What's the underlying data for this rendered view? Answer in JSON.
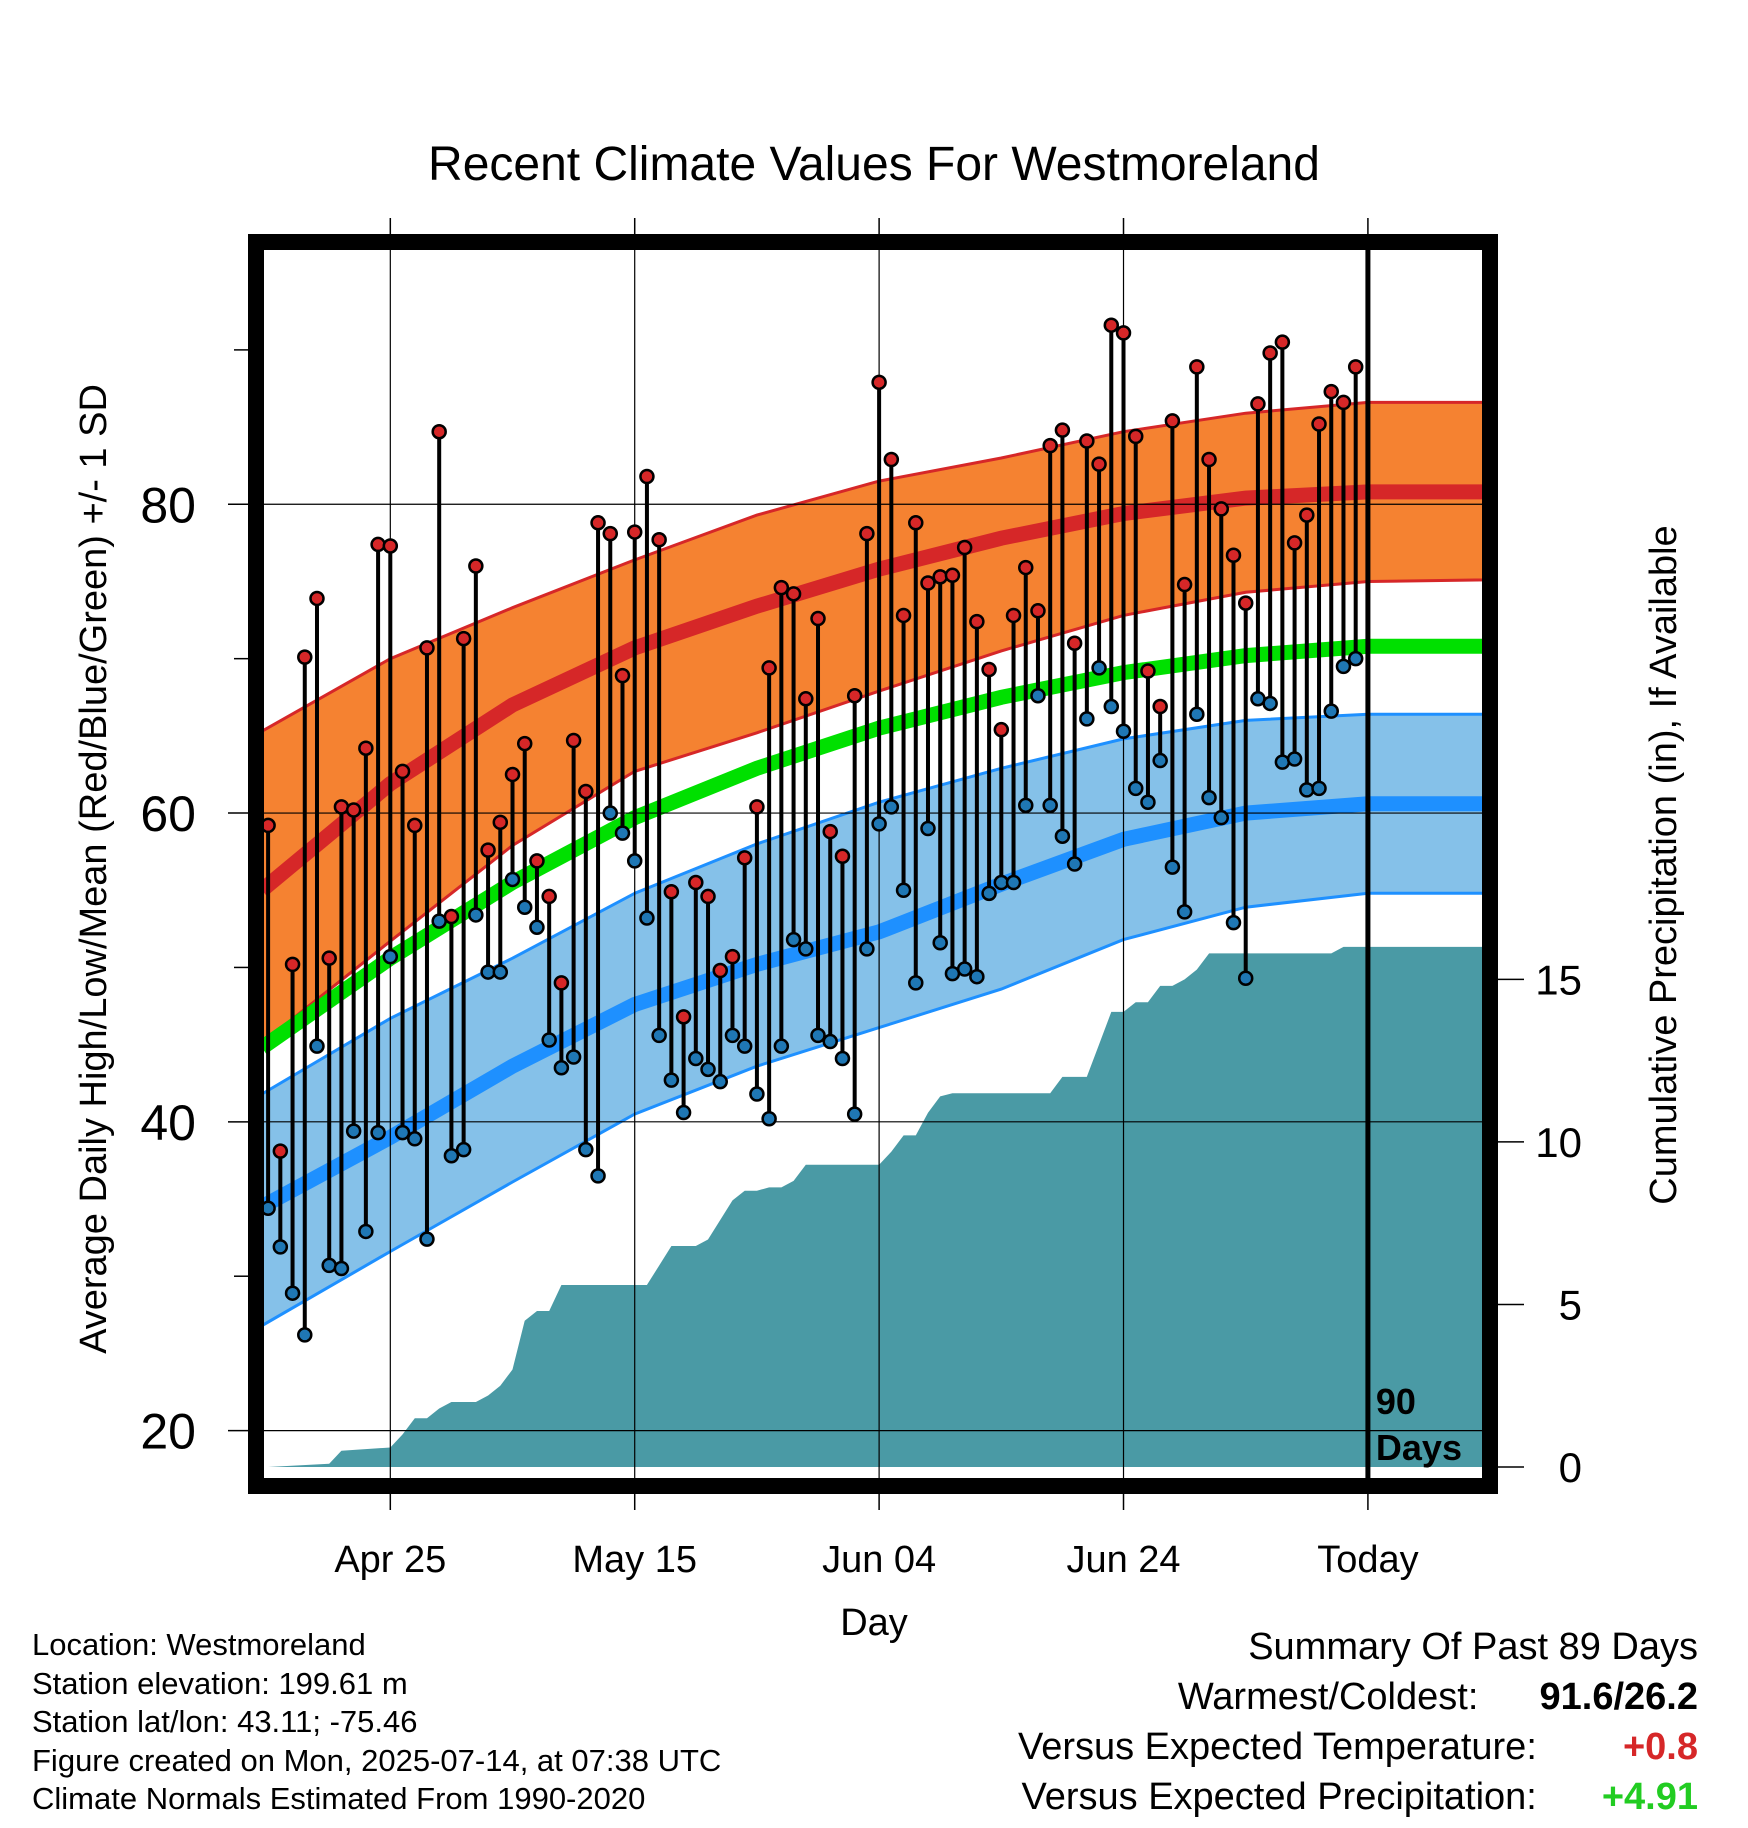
{
  "chart_data": {
    "type": "line",
    "title": "Recent Climate Values For Westmoreland",
    "xlabel": "Day",
    "ylabel_left": "Average Daily High/Low/Mean (Red/Blue/Green) +/- 1 SD",
    "ylabel_right": "Cumulative Precipitation (in), If Available",
    "x_tick_labels": [
      "Apr 25",
      "May 15",
      "Jun 04",
      "Jun 24",
      "Today"
    ],
    "x_tick_days": [
      10,
      30,
      50,
      70,
      90
    ],
    "xlim_days": [
      -0.5,
      99.5
    ],
    "today_label_lines": [
      "90",
      "Days"
    ],
    "y_left_ticks": [
      20,
      40,
      60,
      80
    ],
    "ylim_left": [
      16.8,
      96.6
    ],
    "y_right_ticks": [
      0,
      5,
      10,
      15
    ],
    "ylim_right": [
      -0.4,
      37.5
    ],
    "series": [
      {
        "name": "High",
        "color": "#d62728",
        "days": [
          0,
          1,
          2,
          3,
          4,
          5,
          6,
          7,
          8,
          9,
          10,
          11,
          12,
          13,
          14,
          15,
          16,
          17,
          18,
          19,
          20,
          21,
          22,
          23,
          24,
          25,
          26,
          27,
          28,
          29,
          30,
          31,
          32,
          33,
          34,
          35,
          36,
          37,
          38,
          39,
          40,
          41,
          42,
          43,
          44,
          45,
          46,
          47,
          48,
          49,
          50,
          51,
          52,
          53,
          54,
          55,
          56,
          57,
          58,
          59,
          60,
          61,
          62,
          63,
          64,
          65,
          66,
          67,
          68,
          69,
          70,
          71,
          72,
          73,
          74,
          75,
          76,
          77,
          78,
          79,
          80,
          81,
          82,
          83,
          84,
          85,
          86,
          87,
          88,
          89
        ],
        "values": [
          59.2,
          38.1,
          50.2,
          70.1,
          73.9,
          50.6,
          60.4,
          60.2,
          64.2,
          77.4,
          77.3,
          62.7,
          59.2,
          70.7,
          84.7,
          53.3,
          71.3,
          76.0,
          57.6,
          59.4,
          62.5,
          64.5,
          56.9,
          54.6,
          49.0,
          64.7,
          61.4,
          78.8,
          78.1,
          68.9,
          78.2,
          81.8,
          77.7,
          54.9,
          46.8,
          55.5,
          54.6,
          49.8,
          50.7,
          57.1,
          60.4,
          69.4,
          74.6,
          74.2,
          67.4,
          72.6,
          58.8,
          57.2,
          67.6,
          78.1,
          87.9,
          82.9,
          72.8,
          78.8,
          74.9,
          75.3,
          75.4,
          77.2,
          72.4,
          69.3,
          65.4,
          72.8,
          75.9,
          73.1,
          83.8,
          84.8,
          71.0,
          84.1,
          82.6,
          91.6,
          91.1,
          84.4,
          69.2,
          66.9,
          85.4,
          74.8,
          88.9,
          82.9,
          79.7,
          76.7,
          73.6,
          86.5,
          89.8,
          90.5,
          77.5,
          79.3,
          85.2,
          87.3,
          86.6,
          88.9
        ]
      },
      {
        "name": "Low",
        "color": "#1f77b4",
        "days": [
          0,
          1,
          2,
          3,
          4,
          5,
          6,
          7,
          8,
          9,
          10,
          11,
          12,
          13,
          14,
          15,
          16,
          17,
          18,
          19,
          20,
          21,
          22,
          23,
          24,
          25,
          26,
          27,
          28,
          29,
          30,
          31,
          32,
          33,
          34,
          35,
          36,
          37,
          38,
          39,
          40,
          41,
          42,
          43,
          44,
          45,
          46,
          47,
          48,
          49,
          50,
          51,
          52,
          53,
          54,
          55,
          56,
          57,
          58,
          59,
          60,
          61,
          62,
          63,
          64,
          65,
          66,
          67,
          68,
          69,
          70,
          71,
          72,
          73,
          74,
          75,
          76,
          77,
          78,
          79,
          80,
          81,
          82,
          83,
          84,
          85,
          86,
          87,
          88,
          89
        ],
        "values": [
          34.4,
          31.9,
          28.9,
          26.2,
          44.9,
          30.7,
          30.5,
          39.4,
          32.9,
          39.3,
          50.7,
          39.3,
          38.9,
          32.4,
          53.0,
          37.8,
          38.2,
          53.4,
          49.7,
          49.7,
          55.7,
          53.9,
          52.6,
          45.3,
          43.5,
          44.2,
          38.2,
          36.5,
          60.0,
          58.7,
          56.9,
          53.2,
          45.6,
          42.7,
          40.6,
          44.1,
          43.4,
          42.6,
          45.6,
          44.9,
          41.8,
          40.2,
          44.9,
          51.8,
          51.2,
          45.6,
          45.2,
          44.1,
          40.5,
          51.2,
          59.3,
          60.4,
          55.0,
          49.0,
          59.0,
          51.6,
          49.6,
          49.9,
          49.4,
          54.8,
          55.5,
          55.5,
          60.5,
          67.6,
          60.5,
          58.5,
          56.7,
          66.1,
          69.4,
          66.9,
          65.3,
          61.6,
          60.7,
          63.4,
          56.5,
          53.6,
          66.4,
          61.0,
          59.7,
          52.9,
          49.3,
          67.4,
          67.1,
          63.3,
          63.5,
          61.5,
          61.6,
          66.6,
          69.5,
          70.0
        ]
      },
      {
        "name": "Normal High",
        "color": "#d62728",
        "days": [
          -0.5,
          10,
          20,
          30,
          40,
          50,
          60,
          70,
          80,
          90,
          99.5
        ],
        "values": [
          55.0,
          61.9,
          67.0,
          70.7,
          73.4,
          75.8,
          77.8,
          79.4,
          80.4,
          80.8,
          80.8
        ]
      },
      {
        "name": "Normal High +/- 1 SD",
        "color": "#f58231",
        "days": [
          -0.5,
          10,
          20,
          30,
          40,
          50,
          60,
          70,
          80,
          90,
          99.5
        ],
        "upper": [
          65.3,
          70.0,
          73.3,
          76.4,
          79.3,
          81.5,
          83.0,
          84.7,
          85.9,
          86.6,
          86.6
        ],
        "lower": [
          45.1,
          51.7,
          57.9,
          62.7,
          65.2,
          67.9,
          70.5,
          72.8,
          74.3,
          75.0,
          75.1
        ]
      },
      {
        "name": "Normal Mean",
        "color": "#00e000",
        "days": [
          -0.5,
          10,
          20,
          30,
          40,
          50,
          60,
          70,
          80,
          90,
          99.5
        ],
        "values": [
          44.8,
          50.6,
          55.5,
          59.7,
          62.9,
          65.5,
          67.5,
          69.1,
          70.2,
          70.8,
          70.8
        ]
      },
      {
        "name": "Normal Low",
        "color": "#1e90ff",
        "days": [
          -0.5,
          10,
          20,
          30,
          40,
          50,
          60,
          70,
          80,
          90,
          99.5
        ],
        "values": [
          34.5,
          39.0,
          43.6,
          47.6,
          50.2,
          52.3,
          55.4,
          58.3,
          60.0,
          60.6,
          60.6
        ]
      },
      {
        "name": "Normal Low +/- 1 SD",
        "color": "#85c1e9",
        "days": [
          -0.5,
          10,
          20,
          30,
          40,
          50,
          60,
          70,
          80,
          90,
          99.5
        ],
        "upper": [
          41.8,
          46.7,
          50.6,
          54.8,
          58.0,
          60.7,
          62.9,
          64.8,
          66.0,
          66.4,
          66.4
        ],
        "lower": [
          26.8,
          31.6,
          36.1,
          40.5,
          43.6,
          46.1,
          48.6,
          51.8,
          53.9,
          54.8,
          54.8
        ]
      },
      {
        "name": "Cumulative Precipitation",
        "color": "#4a9aa5",
        "days": [
          -0.5,
          0,
          5,
          6,
          10,
          11,
          12,
          13,
          14,
          15,
          17,
          18,
          19,
          20,
          21,
          22,
          23,
          24,
          25,
          29,
          30,
          31,
          32,
          33,
          34,
          35,
          36,
          37,
          38,
          39,
          40,
          41,
          42,
          43,
          44,
          45,
          46,
          47,
          48,
          49,
          50,
          51,
          52,
          53,
          54,
          55,
          56,
          57,
          58,
          59,
          60,
          61,
          62,
          63,
          64,
          65,
          66,
          67,
          68,
          69,
          70,
          71,
          72,
          73,
          74,
          75,
          76,
          77,
          78,
          79,
          80,
          81,
          82,
          83,
          84,
          85,
          86,
          87,
          88,
          89,
          90,
          91,
          99.5
        ],
        "values": [
          0,
          0,
          0.1,
          0.5,
          0.6,
          1.0,
          1.5,
          1.5,
          1.8,
          2.0,
          2.0,
          2.2,
          2.5,
          3.0,
          4.5,
          4.8,
          4.8,
          5.6,
          5.6,
          5.6,
          5.6,
          5.6,
          6.2,
          6.8,
          6.8,
          6.8,
          7.0,
          7.6,
          8.2,
          8.5,
          8.5,
          8.6,
          8.6,
          8.8,
          9.3,
          9.3,
          9.3,
          9.3,
          9.3,
          9.3,
          9.3,
          9.7,
          10.2,
          10.2,
          10.9,
          11.4,
          11.5,
          11.5,
          11.5,
          11.5,
          11.5,
          11.5,
          11.5,
          11.5,
          11.5,
          12.0,
          12.0,
          12.0,
          13.0,
          14.0,
          14.0,
          14.3,
          14.3,
          14.8,
          14.8,
          15.0,
          15.3,
          15.8,
          15.8,
          15.8,
          15.8,
          15.8,
          15.8,
          15.8,
          15.8,
          15.8,
          15.8,
          15.8,
          16.0,
          16.0,
          16.0,
          16.0,
          16.0
        ]
      }
    ],
    "grid": true,
    "legend": "none"
  },
  "footer": {
    "location": "Location: Westmoreland",
    "elevation": "Station elevation: 199.61 m",
    "latlon": "Station lat/lon: 43.11; -75.46",
    "created": "Figure created on Mon, 2025-07-14, at 07:38 UTC",
    "normals": "Climate Normals Estimated From 1990-2020"
  },
  "summary": {
    "heading": "Summary Of Past 89 Days",
    "warmest_coldest_label": "Warmest/Coldest:",
    "warmest_coldest_value": "91.6/26.2",
    "temp_label": "Versus Expected Temperature:",
    "temp_value": "+0.8",
    "temp_color": "#d62728",
    "precip_label": "Versus Expected Precipitation:",
    "precip_value": "+4.91",
    "precip_color": "#22cc22"
  }
}
